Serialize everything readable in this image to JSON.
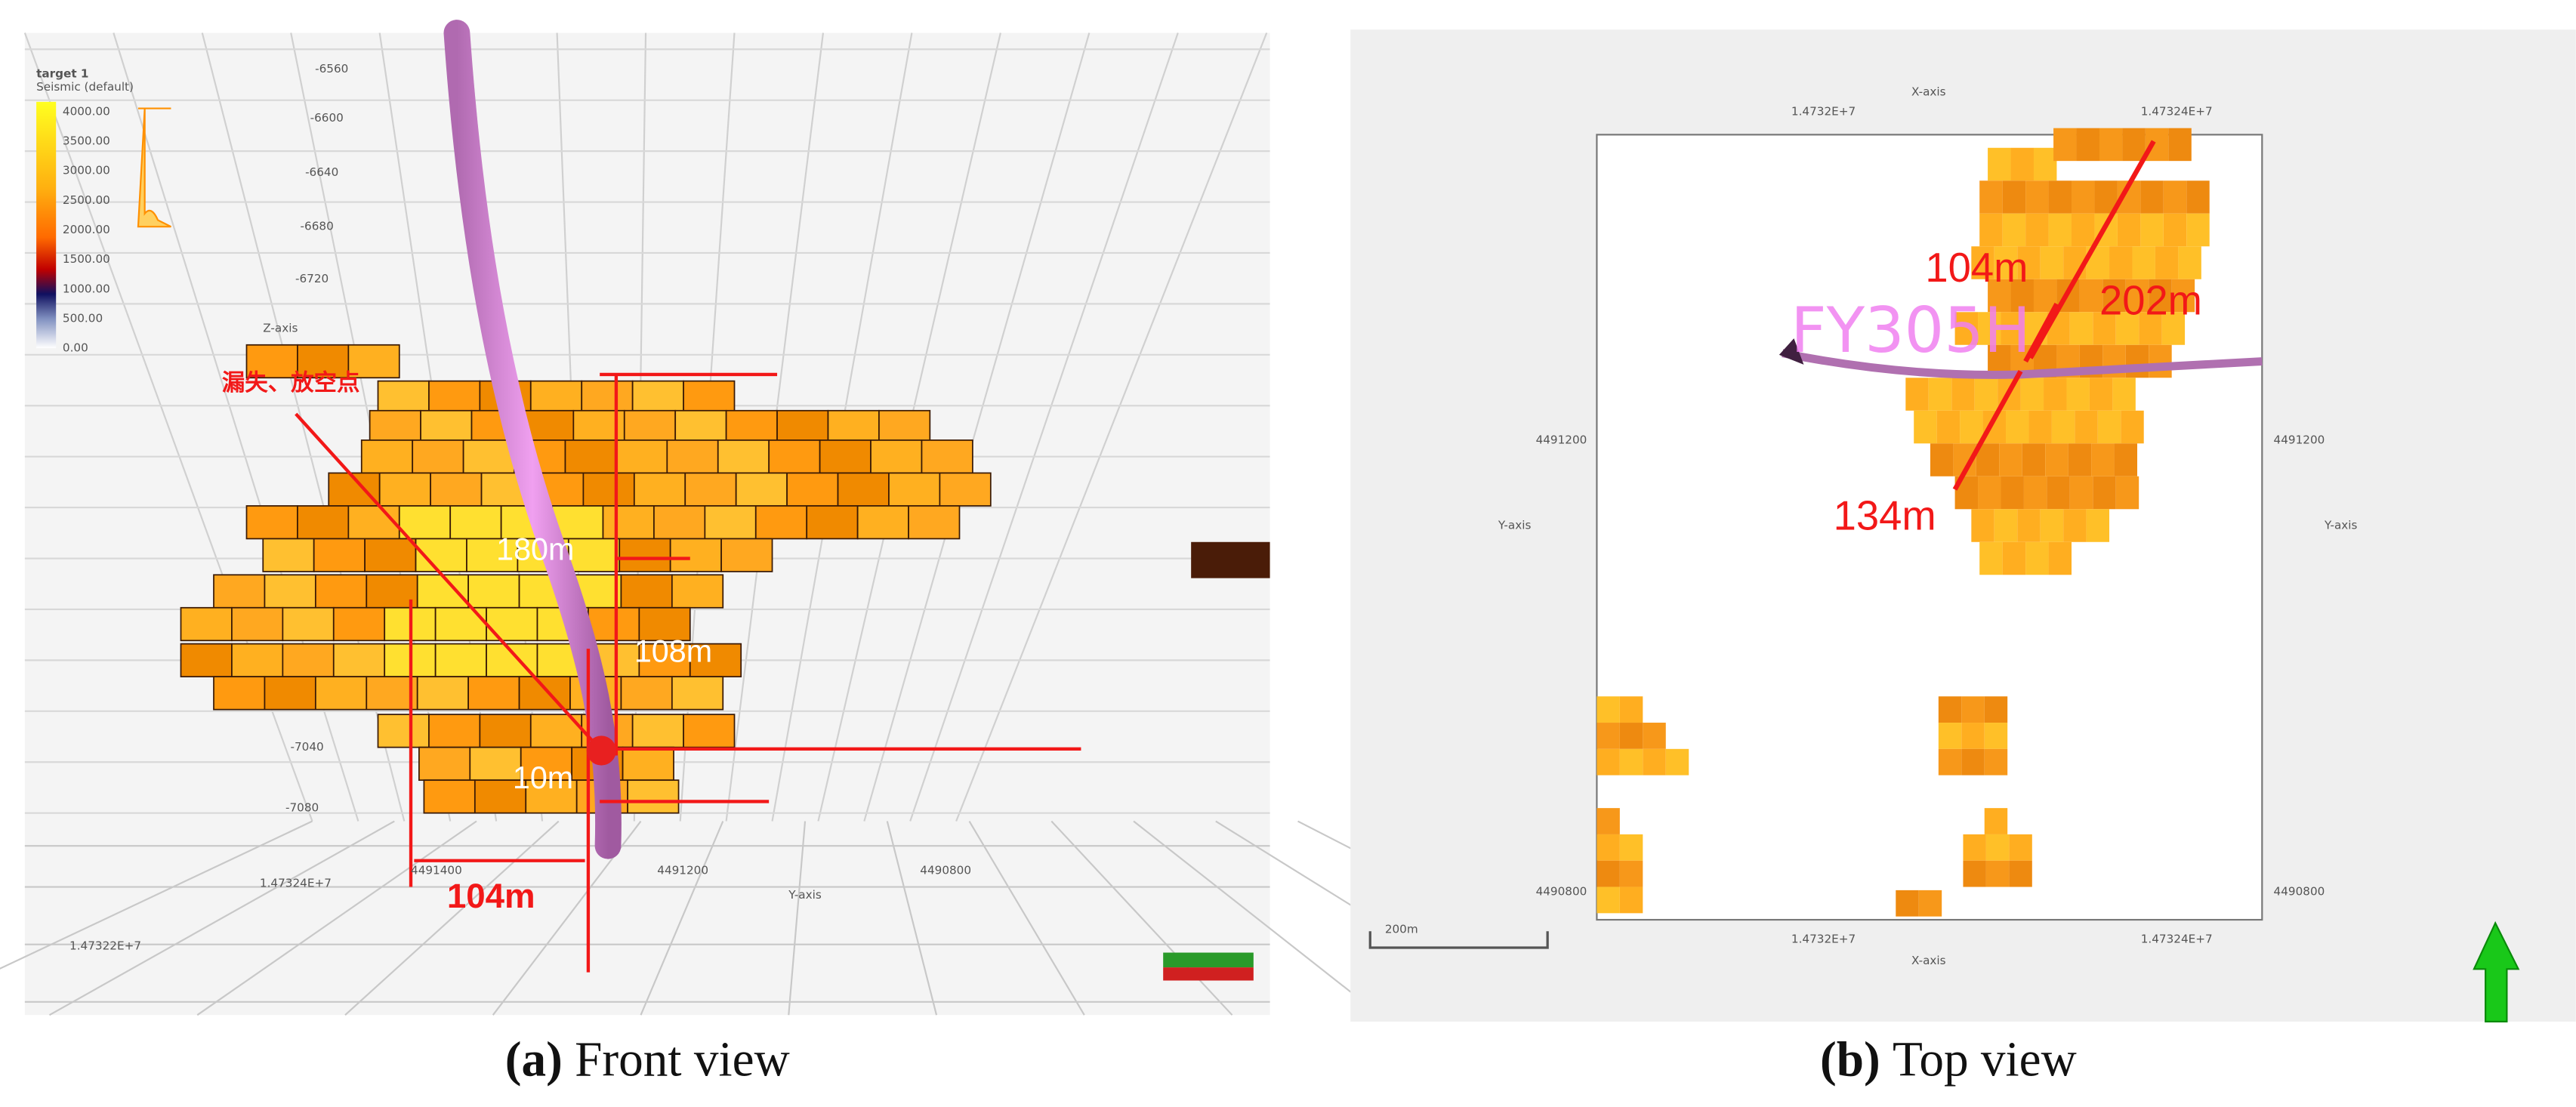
{
  "front_view": {
    "caption_label": "(a)",
    "caption": "Front view",
    "colorbar": {
      "title": "target 1",
      "subtitle": "Seismic (default)",
      "ticks": [
        "4000.00",
        "3500.00",
        "3000.00",
        "2500.00",
        "2000.00",
        "1500.00",
        "1000.00",
        "500.00",
        "0.00"
      ]
    },
    "z_axis_label": "Z-axis",
    "y_axis_label": "Y-axis",
    "z_ticks": [
      "-6560",
      "-6600",
      "-6640",
      "-6680",
      "-6720",
      "-7040",
      "-7080"
    ],
    "y_ticks": [
      "4491400",
      "4491200",
      "4490800"
    ],
    "x_ticks": [
      "1.47324E+7",
      "1.47322E+7"
    ],
    "annotations": {
      "leak_point": "漏失、放空点",
      "d180": "180m",
      "d108": "108m",
      "d10": "10m",
      "d104": "104m"
    }
  },
  "top_view": {
    "caption_label": "(b)",
    "caption": "Top view",
    "x_axis_label": "X-axis",
    "y_axis_label": "Y-axis",
    "x_ticks": [
      "1.4732E+7",
      "1.47324E+7"
    ],
    "y_ticks": [
      "4491200",
      "4490800"
    ],
    "well": "FY305H",
    "annotations": {
      "d104": "104m",
      "d202": "202m",
      "d134": "134m"
    },
    "scale_bar": "200m"
  }
}
